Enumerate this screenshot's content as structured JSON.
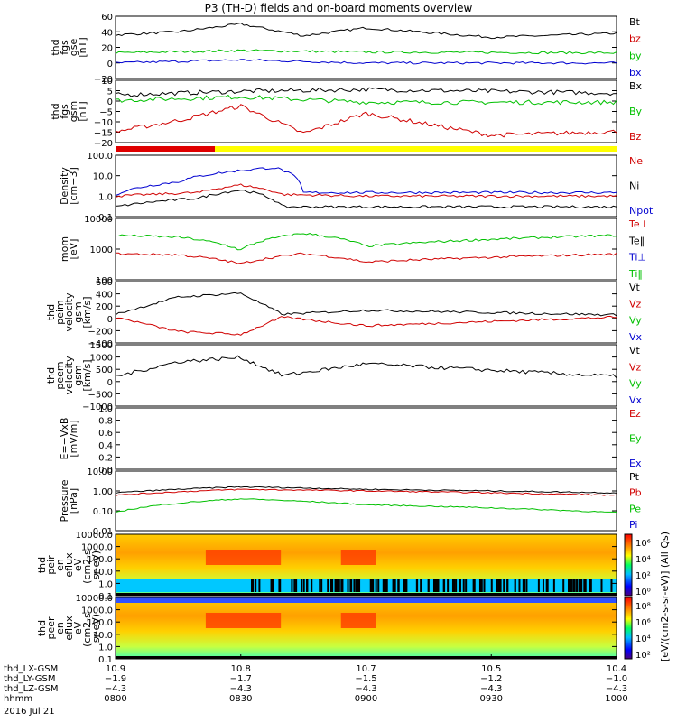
{
  "title": "P3 (TH-D) fields and on-board moments overview",
  "panels": [
    {
      "id": "fgs-gse",
      "ylabel": [
        "thd",
        "fgs",
        "gse",
        "[nT]"
      ],
      "ylim": [
        -20,
        60
      ],
      "yticks": [
        "60",
        "40",
        "20",
        "0",
        "−20"
      ],
      "legend": [
        {
          "label": "Bt",
          "color": "#000000"
        },
        {
          "label": "bz",
          "color": "#d00000"
        },
        {
          "label": "by",
          "color": "#00c000"
        },
        {
          "label": "bx",
          "color": "#0000d0"
        }
      ]
    },
    {
      "id": "fgs-gsm",
      "ylabel": [
        "thd",
        "fgs",
        "gsm",
        "[nT]"
      ],
      "ylim": [
        -22,
        12
      ],
      "yticks": [
        "10",
        "5",
        "0",
        "−5",
        "−10",
        "−15",
        "−20"
      ],
      "legend": [
        {
          "label": "Bx",
          "color": "#000000"
        },
        {
          "label": "By",
          "color": "#00c000"
        },
        {
          "label": "Bz",
          "color": "#d00000"
        }
      ]
    },
    {
      "id": "density",
      "ylabel": [
        "Density",
        "[cm−3]"
      ],
      "scale": "log",
      "ylim": [
        0.1,
        100
      ],
      "yticks": [
        "100.0",
        "10.0",
        "1.0",
        "0.1"
      ],
      "legend": [
        {
          "label": "Ne",
          "color": "#d00000"
        },
        {
          "label": "Ni",
          "color": "#000000"
        },
        {
          "label": "Npot",
          "color": "#0000d0"
        }
      ]
    },
    {
      "id": "mom-temp",
      "ylabel": [
        "mom",
        "[eV]"
      ],
      "scale": "log",
      "ylim": [
        20,
        10000
      ],
      "yticks": [
        "10000",
        "1000",
        "100"
      ],
      "legend": [
        {
          "label": "Te⊥",
          "color": "#d00000"
        },
        {
          "label": "Te‖",
          "color": "#000000"
        },
        {
          "label": "Ti⊥",
          "color": "#0000d0"
        },
        {
          "label": "Ti‖",
          "color": "#00c000"
        }
      ]
    },
    {
      "id": "peim-velocity",
      "ylabel": [
        "thd",
        "peim",
        "velocity",
        "gsm",
        "[km/s]"
      ],
      "ylim": [
        -450,
        620
      ],
      "yticks": [
        "600",
        "400",
        "200",
        "0",
        "−200",
        "−400"
      ],
      "legend": [
        {
          "label": "Vt",
          "color": "#000000"
        },
        {
          "label": "Vz",
          "color": "#d00000"
        },
        {
          "label": "Vy",
          "color": "#00c000"
        },
        {
          "label": "Vx",
          "color": "#0000d0"
        }
      ]
    },
    {
      "id": "peem-velocity",
      "ylabel": [
        "thd",
        "peem",
        "velocity",
        "gsm",
        "[km/s]"
      ],
      "ylim": [
        -1300,
        1600
      ],
      "yticks": [
        "1500",
        "1000",
        "500",
        "0",
        "−500",
        "−1000"
      ],
      "legend": [
        {
          "label": "Vt",
          "color": "#000000"
        },
        {
          "label": "Vz",
          "color": "#d00000"
        },
        {
          "label": "Vy",
          "color": "#00c000"
        },
        {
          "label": "Vx",
          "color": "#0000d0"
        }
      ]
    },
    {
      "id": "efield",
      "ylabel": [
        "E=−VxB",
        "[mV/m]"
      ],
      "ylim": [
        0,
        1
      ],
      "yticks": [
        "1.0",
        "0.8",
        "0.6",
        "0.4",
        "0.2",
        "0.0"
      ],
      "legend": [
        {
          "label": "Ez",
          "color": "#d00000"
        },
        {
          "label": "Ey",
          "color": "#00c000"
        },
        {
          "label": "Ex",
          "color": "#0000d0"
        }
      ]
    },
    {
      "id": "pressure",
      "ylabel": [
        "Pressure",
        "[nPa]"
      ],
      "scale": "log",
      "ylim": [
        0.01,
        10
      ],
      "yticks": [
        "10.00",
        "1.00",
        "0.10",
        "0.01"
      ],
      "legend": [
        {
          "label": "Pt",
          "color": "#000000"
        },
        {
          "label": "Pb",
          "color": "#d00000"
        },
        {
          "label": "Pe",
          "color": "#00c000"
        },
        {
          "label": "Pi",
          "color": "#0000d0"
        }
      ]
    },
    {
      "id": "peir-spec",
      "ylabel": [
        "thd",
        "peir",
        "en",
        "eflux",
        "eV",
        "(cm2-s-",
        "sr-eV)"
      ],
      "scale": "log",
      "yticks": [
        "10000.0",
        "1000.0",
        "100.0",
        "10.0",
        "1.0",
        "0.1"
      ]
    },
    {
      "id": "peer-spec",
      "ylabel": [
        "thd",
        "peer",
        "en",
        "eflux",
        "eV",
        "(cm2-s-",
        "sr-eV)"
      ],
      "scale": "log",
      "yticks": [
        "10000.0",
        "1000.0",
        "100.0",
        "10.0",
        "1.0",
        "0.1"
      ]
    }
  ],
  "colorbar": {
    "label": "[eV/(cm2-s-sr-eV)] (All Qs)",
    "top_ticks": [
      "10⁶",
      "10⁴",
      "10²",
      "10⁰"
    ],
    "bottom_ticks": [
      "10⁸",
      "10⁶",
      "10⁴",
      "10²"
    ]
  },
  "xaxis": {
    "rows": [
      {
        "label": "thd_LX-GSM",
        "values": [
          "10.9",
          "10.8",
          "10.7",
          "10.5",
          "10.4"
        ]
      },
      {
        "label": "thd_LY-GSM",
        "values": [
          "−1.9",
          "−1.7",
          "−1.5",
          "−1.2",
          "−1.0"
        ]
      },
      {
        "label": "thd_LZ-GSM",
        "values": [
          "−4.3",
          "−4.3",
          "−4.3",
          "−4.3",
          "−4.3"
        ]
      },
      {
        "label": "hhmm",
        "values": [
          "0800",
          "0830",
          "0900",
          "0930",
          "1000"
        ]
      }
    ],
    "date": "2016 Jul 21"
  },
  "chart_data": {
    "type": "line",
    "time_axis": [
      "0800",
      "0830",
      "0900",
      "0930",
      "1000"
    ],
    "series": [
      {
        "panel": "fgs-gse",
        "name": "Bt",
        "x": [
          "0800",
          "0815",
          "0830",
          "0845",
          "0900",
          "0930",
          "1000"
        ],
        "values": [
          36,
          40,
          50,
          35,
          45,
          33,
          38
        ]
      },
      {
        "panel": "fgs-gse",
        "name": "by",
        "x": [
          "0800",
          "0830",
          "0900",
          "1000"
        ],
        "values": [
          13,
          16,
          14,
          13
        ]
      },
      {
        "panel": "fgs-gse",
        "name": "bx",
        "x": [
          "0800",
          "0830",
          "0900",
          "1000"
        ],
        "values": [
          0,
          4,
          0,
          0
        ]
      },
      {
        "panel": "fgs-gsm",
        "name": "Bx",
        "x": [
          "0800",
          "0830",
          "0900",
          "1000"
        ],
        "values": [
          4,
          6,
          7,
          5
        ]
      },
      {
        "panel": "fgs-gsm",
        "name": "By",
        "x": [
          "0800",
          "0830",
          "0900",
          "1000"
        ],
        "values": [
          1,
          3,
          0,
          0
        ]
      },
      {
        "panel": "fgs-gsm",
        "name": "Bz",
        "x": [
          "0800",
          "0815",
          "0830",
          "0845",
          "0900",
          "0930",
          "1000"
        ],
        "values": [
          -16,
          -10,
          -2,
          -17,
          -6,
          -18,
          -16
        ]
      },
      {
        "panel": "density",
        "name": "Ne",
        "x": [
          "0800",
          "0820",
          "0830",
          "0840",
          "0900",
          "1000"
        ],
        "values": [
          1.0,
          1.5,
          3.5,
          1.2,
          1.0,
          1.0
        ]
      },
      {
        "panel": "density",
        "name": "Ni",
        "x": [
          "0800",
          "0820",
          "0830",
          "0840",
          "0900",
          "1000"
        ],
        "values": [
          0.3,
          0.8,
          2.0,
          0.3,
          0.3,
          0.3
        ]
      },
      {
        "panel": "density",
        "name": "Npot",
        "x": [
          "0800",
          "0815",
          "0838",
          "0845",
          "1000"
        ],
        "values": [
          1.2,
          5.0,
          25.0,
          1.5,
          1.5
        ]
      },
      {
        "panel": "mom-temp",
        "name": "Ti‖",
        "x": [
          "0800",
          "0815",
          "0830",
          "0845",
          "0900",
          "1000"
        ],
        "values": [
          1800,
          1500,
          400,
          2200,
          600,
          1800
        ]
      },
      {
        "panel": "mom-temp",
        "name": "Te⊥",
        "x": [
          "0800",
          "0815",
          "0830",
          "0845",
          "0900",
          "1000"
        ],
        "values": [
          280,
          250,
          100,
          280,
          120,
          270
        ]
      },
      {
        "panel": "peim-velocity",
        "name": "Vt",
        "x": [
          "0800",
          "0815",
          "0830",
          "0840",
          "0900",
          "1000"
        ],
        "values": [
          50,
          350,
          420,
          50,
          120,
          40
        ]
      },
      {
        "panel": "peim-velocity",
        "name": "Vz",
        "x": [
          "0800",
          "0815",
          "0830",
          "0840",
          "0900",
          "1000"
        ],
        "values": [
          0,
          -250,
          -300,
          0,
          -150,
          0
        ]
      },
      {
        "panel": "peem-velocity",
        "name": "Vt",
        "x": [
          "0800",
          "0815",
          "0830",
          "0840",
          "0900",
          "1000"
        ],
        "values": [
          100,
          800,
          1000,
          150,
          700,
          100
        ]
      },
      {
        "panel": "pressure",
        "name": "Pt",
        "x": [
          "0800",
          "0830",
          "0900",
          "1000"
        ],
        "values": [
          0.8,
          1.6,
          1.2,
          0.8
        ]
      },
      {
        "panel": "pressure",
        "name": "Pb",
        "x": [
          "0800",
          "0830",
          "0900",
          "1000"
        ],
        "values": [
          0.6,
          1.2,
          1.0,
          0.6
        ]
      },
      {
        "panel": "pressure",
        "name": "Pe",
        "x": [
          "0800",
          "0830",
          "0900",
          "1000"
        ],
        "values": [
          0.08,
          0.4,
          0.2,
          0.08
        ]
      }
    ]
  }
}
